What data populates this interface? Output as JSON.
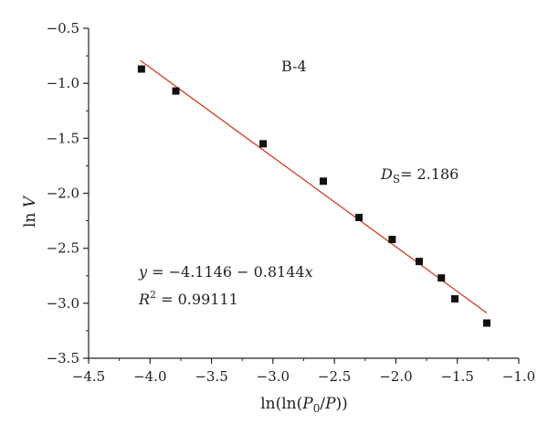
{
  "chart_data": {
    "type": "scatter",
    "xlabel": "ln(ln(P0/P))",
    "ylabel": "ln V",
    "xlim": [
      -4.5,
      -1.0
    ],
    "ylim": [
      -3.5,
      -0.5
    ],
    "xticks": [
      "−4.5",
      "−4.0",
      "−3.5",
      "−3.0",
      "−2.5",
      "−2.0",
      "−1.5",
      "−1.0"
    ],
    "yticks": [
      "−0.5",
      "−1.0",
      "−1.5",
      "−2.0",
      "−2.5",
      "−3.0",
      "−3.5"
    ],
    "points": [
      {
        "x": -4.07,
        "y": -0.87
      },
      {
        "x": -3.79,
        "y": -1.07
      },
      {
        "x": -3.08,
        "y": -1.55
      },
      {
        "x": -2.59,
        "y": -1.89
      },
      {
        "x": -2.3,
        "y": -2.22
      },
      {
        "x": -2.03,
        "y": -2.42
      },
      {
        "x": -1.81,
        "y": -2.62
      },
      {
        "x": -1.63,
        "y": -2.77
      },
      {
        "x": -1.52,
        "y": -2.96
      },
      {
        "x": -1.26,
        "y": -3.18
      }
    ],
    "fit_line": {
      "x_start": -4.08,
      "x_end": -1.26,
      "intercept": -4.1146,
      "slope": -0.8144,
      "color": "#d23a1e"
    },
    "marker_color": "#111111",
    "legend": "none",
    "grid": false,
    "annotations": {
      "sample": "B-4",
      "ds_label": "D",
      "ds_sub": "S",
      "ds_value": "= 2.186",
      "equation_y": "y",
      "equation_rest": " = −4.1146 − 0.8144",
      "equation_x": "x",
      "r2_label": "R",
      "r2_sup": "2",
      "r2_value": " = 0.99111"
    },
    "xlabel_parts": {
      "prefix": "ln(ln(",
      "p": "P",
      "sub": "0",
      "mid": "/",
      "p2": "P",
      "suffix": "))"
    },
    "ylabel_parts": {
      "ln": "ln ",
      "v": "V"
    }
  }
}
